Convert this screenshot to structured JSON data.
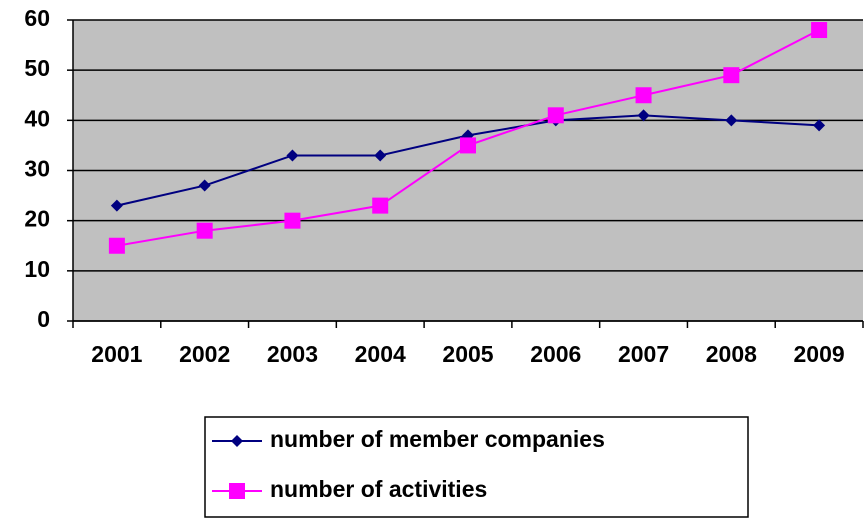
{
  "chart_data": {
    "type": "line",
    "categories": [
      "2001",
      "2002",
      "2003",
      "2004",
      "2005",
      "2006",
      "2007",
      "2008",
      "2009"
    ],
    "series": [
      {
        "name": "number of member companies",
        "color": "#000080",
        "marker": "diamond",
        "values": [
          23,
          27,
          33,
          33,
          37,
          40,
          41,
          40,
          39
        ]
      },
      {
        "name": "number of activities",
        "color": "#ff00ff",
        "marker": "square",
        "values": [
          15,
          18,
          20,
          23,
          35,
          41,
          45,
          49,
          58
        ]
      }
    ],
    "ylim": [
      0,
      60
    ],
    "yticks": [
      0,
      10,
      20,
      30,
      40,
      50,
      60
    ],
    "grid": true,
    "legend": "bottom"
  }
}
